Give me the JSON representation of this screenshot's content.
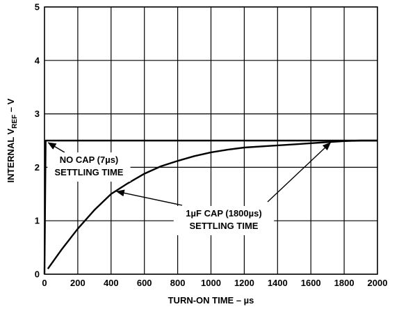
{
  "chart_data": {
    "type": "line",
    "title": "",
    "xlabel": "TURN-ON TIME – µs",
    "ylabel": {
      "prefix": "INTERNAL V",
      "subscript": "REF",
      "suffix": " – V"
    },
    "xlim": [
      0,
      2000
    ],
    "ylim": [
      0,
      5
    ],
    "grid": true,
    "x_ticks": [
      "0",
      "200",
      "400",
      "600",
      "800",
      "1000",
      "1200",
      "1400",
      "1600",
      "1800",
      "2000"
    ],
    "y_ticks": [
      "0",
      "1",
      "2",
      "3",
      "4",
      "5"
    ],
    "series": [
      {
        "x": [
          0,
          7,
          7,
          2000
        ],
        "y": [
          0,
          2.5,
          2.5,
          2.5
        ]
      },
      {
        "x": [
          20,
          100,
          200,
          300,
          400,
          500,
          600,
          700,
          800,
          900,
          1000,
          1100,
          1200,
          1300,
          1400,
          1500,
          1600,
          1700,
          1800,
          1900,
          2000
        ],
        "y": [
          0.1,
          0.45,
          0.85,
          1.2,
          1.5,
          1.7,
          1.88,
          2.02,
          2.12,
          2.21,
          2.28,
          2.33,
          2.37,
          2.39,
          2.41,
          2.43,
          2.45,
          2.47,
          2.49,
          2.5,
          2.5
        ]
      }
    ],
    "annotations": [
      {
        "lines": [
          "NO CAP (7µs)",
          "SETTLING TIME"
        ],
        "target": [
          10,
          2.5
        ]
      },
      {
        "lines": [
          "1µF CAP (1800µs)",
          "SETTLING TIME"
        ],
        "targets": [
          [
            425,
            1.6
          ],
          [
            1730,
            2.5
          ]
        ]
      }
    ]
  }
}
